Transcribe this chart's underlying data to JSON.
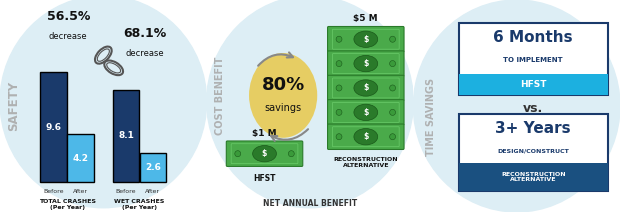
{
  "bg_circle": "#ddeef5",
  "white": "#ffffff",
  "dark_blue": "#1a3a6b",
  "light_blue_bar": "#4db8e8",
  "mid_blue_bar": "#1a6aaa",
  "gray_label": "#aaaaaa",
  "black": "#111111",
  "green_bill": "#4aaa4a",
  "green_bill_dark": "#2a7a2a",
  "green_bill_light": "#88cc88",
  "savings_yellow": "#e8c84a",
  "arrow_gray": "#888888",
  "hfst_bar_blue": "#1cb0e0",
  "recon_bar_blue": "#1a5080",
  "safety": {
    "label": "SAFETY",
    "pct1": "56.5%",
    "dec1": "decrease",
    "pct2": "68.1%",
    "dec2": "decrease",
    "total_before": 9.6,
    "total_after": 4.2,
    "wet_before": 8.1,
    "wet_after": 2.6,
    "max_val": 10.0
  },
  "cost": {
    "label": "COST BENEFIT",
    "subtitle": "NET ANNUAL BENEFIT",
    "savings_pct": "80%",
    "savings_label": "savings",
    "hfst_cost": "$1 M",
    "recon_cost": "$5 M",
    "hfst_label": "HFST",
    "recon_label": "RECONSTRUCTION\nALTERNATIVE",
    "num_recon_bills": 5
  },
  "time": {
    "label": "TIME SAVINGS",
    "box1_big": "6 Months",
    "box1_sub": "TO IMPLEMENT",
    "box1_bar": "HFST",
    "vs": "vs.",
    "box2_big": "3+ Years",
    "box2_sub": "DESIGN/CONSTRUCT",
    "box2_bar": "RECONSTRUCTION\nALTERNATIVE"
  }
}
